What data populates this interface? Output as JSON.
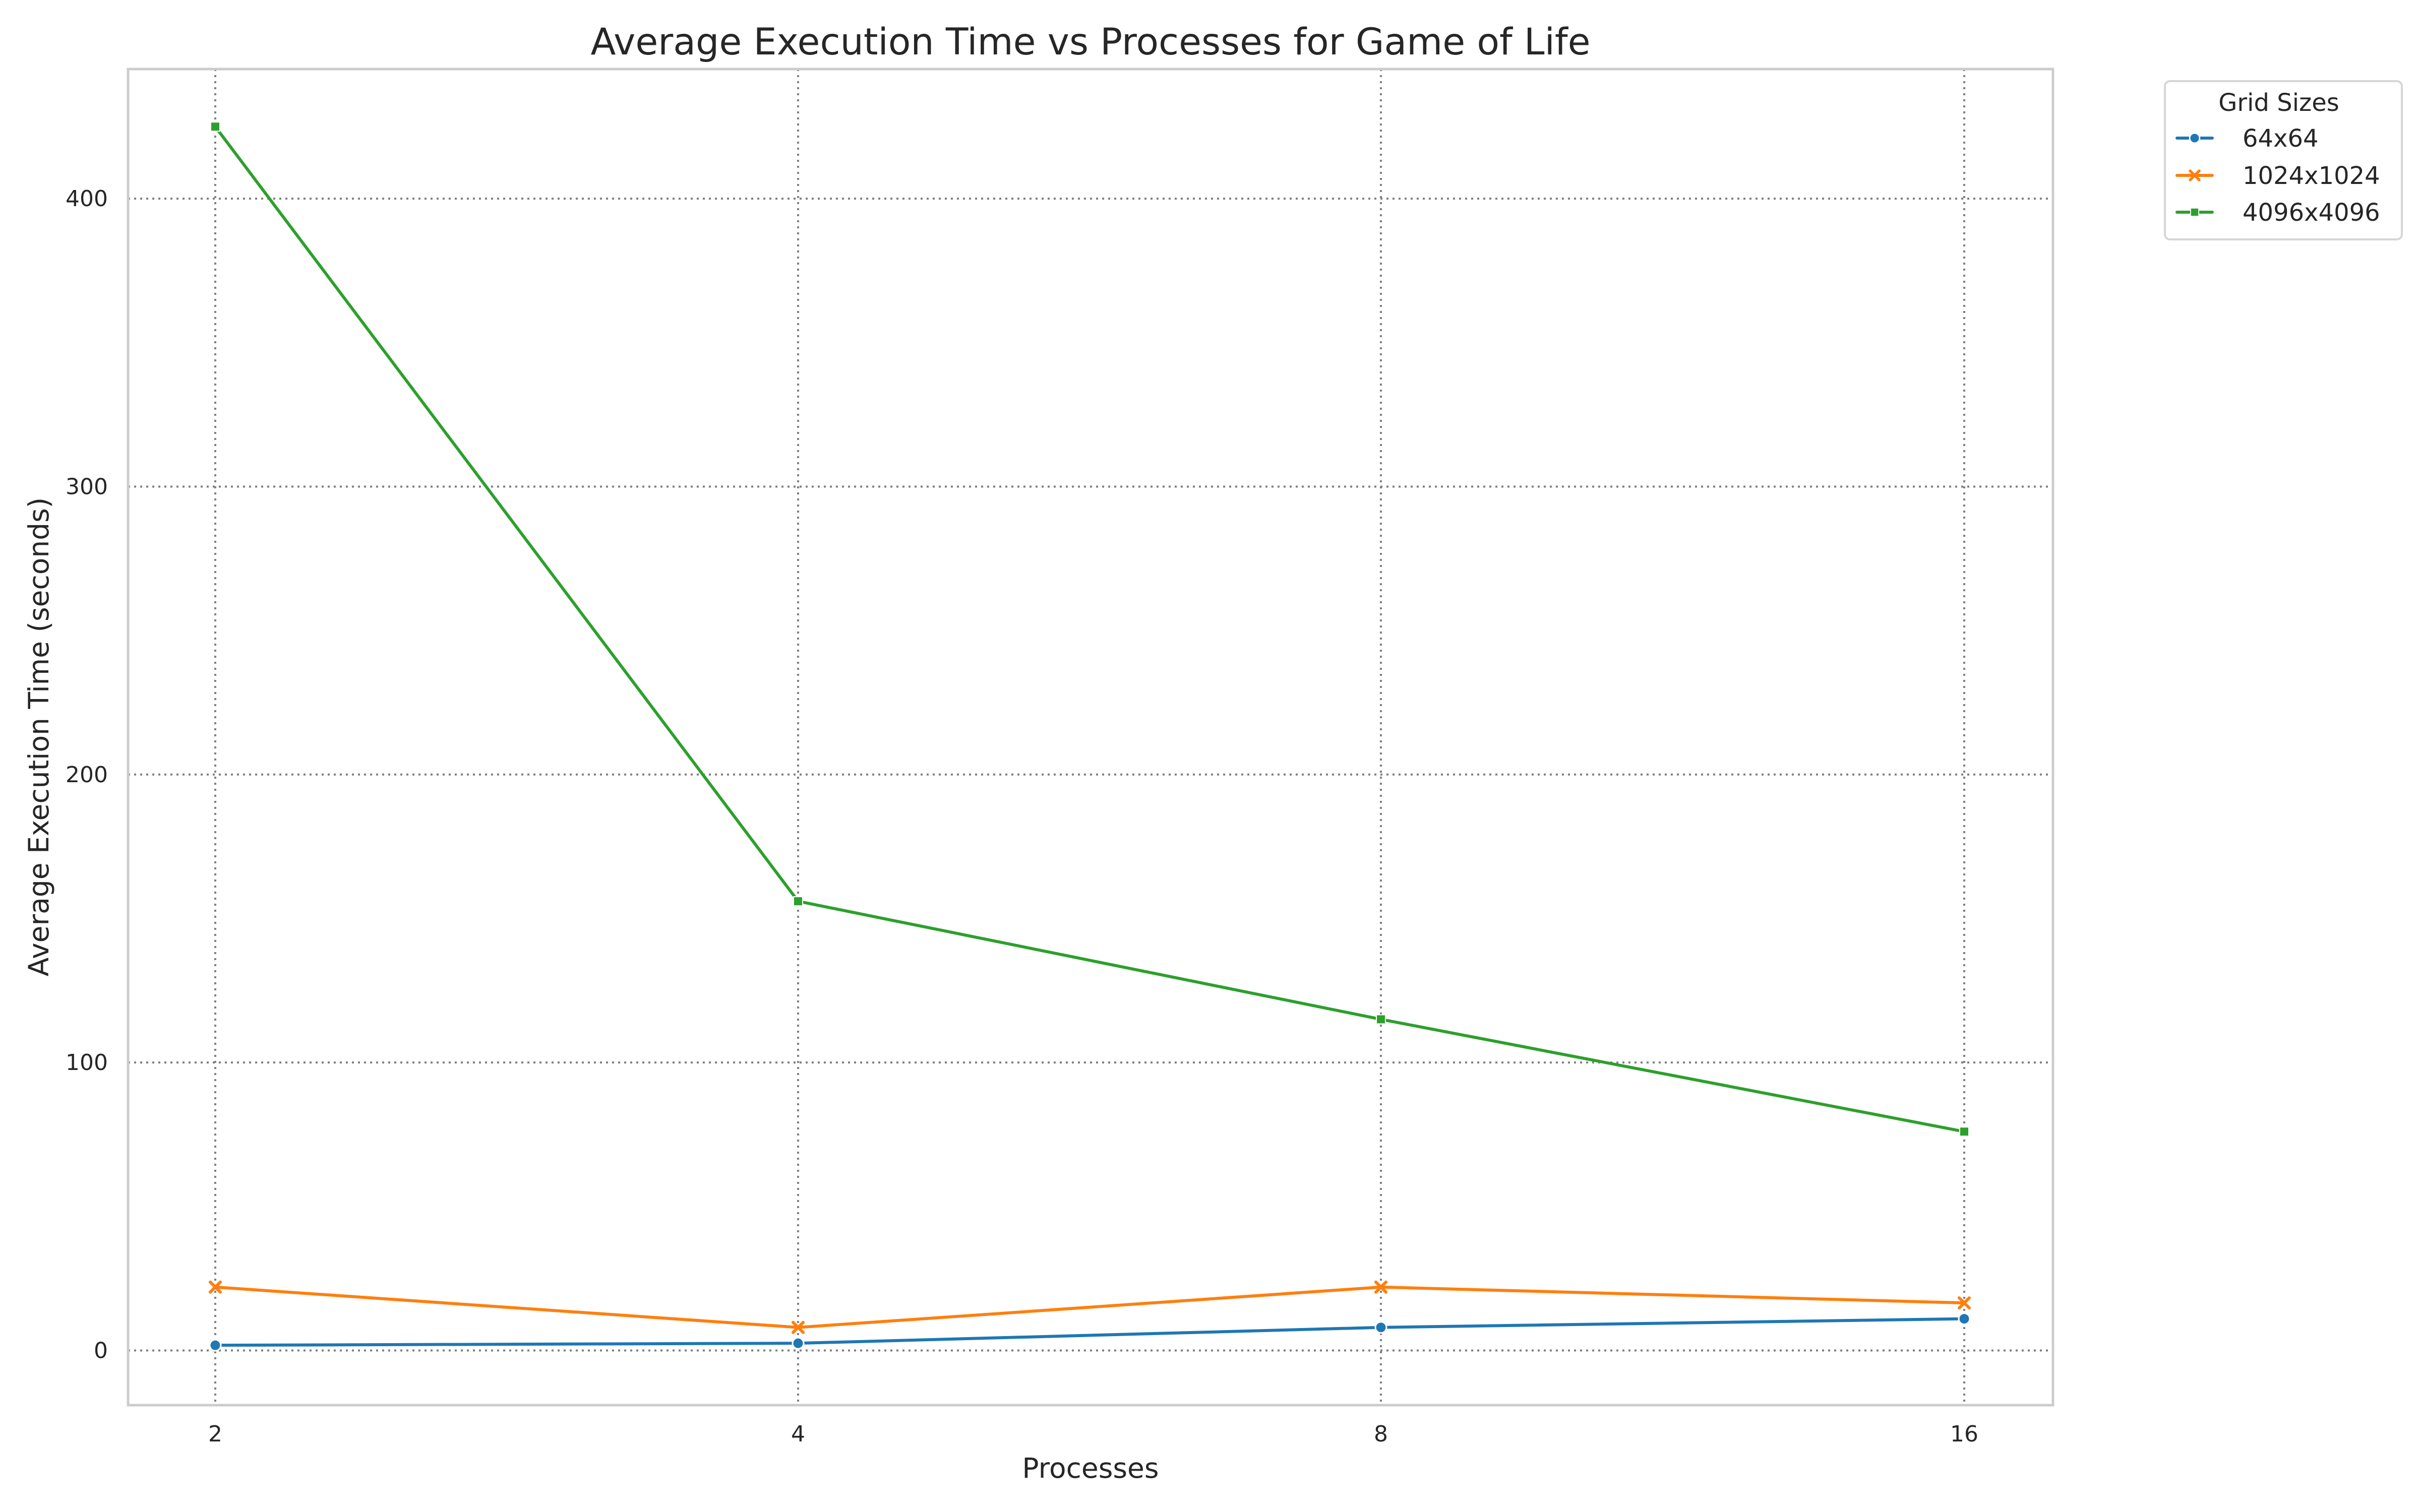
{
  "chart_data": {
    "type": "line",
    "title": "Average Execution Time vs Processes for Game of Life",
    "xlabel": "Processes",
    "ylabel": "Average Execution Time (seconds)",
    "categories": [
      "2",
      "4",
      "8",
      "16"
    ],
    "y_ticks": [
      0,
      100,
      200,
      300,
      400
    ],
    "ylim": [
      -19,
      445
    ],
    "grid": true,
    "legend": {
      "title": "Grid Sizes",
      "placement": "outside top-right"
    },
    "series": [
      {
        "name": "64x64",
        "marker": "circle",
        "color": "#1f77b4",
        "values": [
          1.8,
          2.5,
          8.0,
          11.0
        ]
      },
      {
        "name": "1024x1024",
        "marker": "x",
        "color": "#ff7f0e",
        "values": [
          22.0,
          8.0,
          22.0,
          16.5
        ]
      },
      {
        "name": "4096x4096",
        "marker": "square",
        "color": "#2ca02c",
        "values": [
          425.0,
          156.0,
          115.0,
          76.0
        ]
      }
    ]
  }
}
